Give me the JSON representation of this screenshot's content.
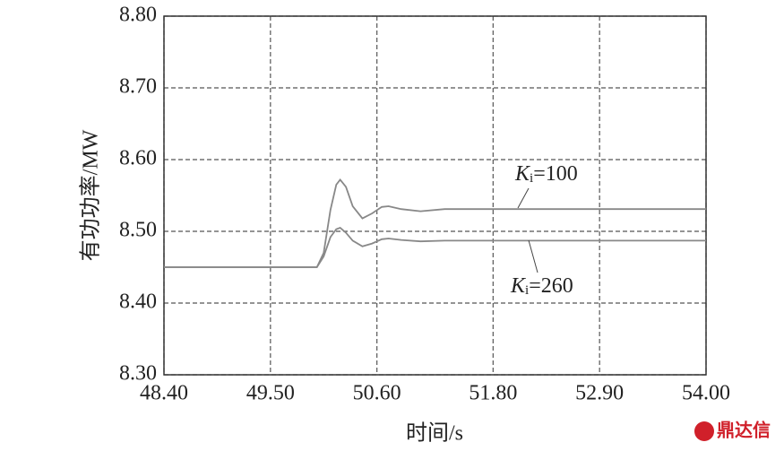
{
  "chart_data": {
    "type": "line",
    "xlabel": "时间/s",
    "ylabel": "有功功率/MW",
    "x": [
      48.4,
      49.98,
      50.05,
      50.12,
      50.18,
      50.22,
      50.28,
      50.35,
      50.45,
      50.55,
      50.65,
      50.72,
      50.85,
      51.05,
      51.3,
      54.0
    ],
    "series": [
      {
        "name": "Ki=100",
        "color": "#888888",
        "values": [
          8.45,
          8.45,
          8.47,
          8.53,
          8.565,
          8.572,
          8.562,
          8.535,
          8.518,
          8.525,
          8.534,
          8.535,
          8.531,
          8.528,
          8.531,
          8.531
        ]
      },
      {
        "name": "Ki=260",
        "color": "#888888",
        "values": [
          8.45,
          8.45,
          8.465,
          8.492,
          8.503,
          8.505,
          8.498,
          8.487,
          8.479,
          8.483,
          8.489,
          8.49,
          8.488,
          8.486,
          8.487,
          8.487
        ]
      }
    ],
    "xlim": [
      48.4,
      54.0
    ],
    "xticks": [
      {
        "value": 48.4,
        "label": "48.40"
      },
      {
        "value": 49.5,
        "label": "49.50"
      },
      {
        "value": 50.6,
        "label": "50.60"
      },
      {
        "value": 51.8,
        "label": "51.80"
      },
      {
        "value": 52.9,
        "label": "52.90"
      },
      {
        "value": 54.0,
        "label": "54.00"
      }
    ],
    "ylim": [
      8.3,
      8.8
    ],
    "yticks": [
      {
        "value": 8.3,
        "label": "8.30"
      },
      {
        "value": 8.4,
        "label": "8.40"
      },
      {
        "value": 8.5,
        "label": "8.50"
      },
      {
        "value": 8.6,
        "label": "8.60"
      },
      {
        "value": 8.7,
        "label": "8.70"
      },
      {
        "value": 8.8,
        "label": "8.80"
      }
    ],
    "grid": true,
    "watermark": "鼎达信"
  }
}
